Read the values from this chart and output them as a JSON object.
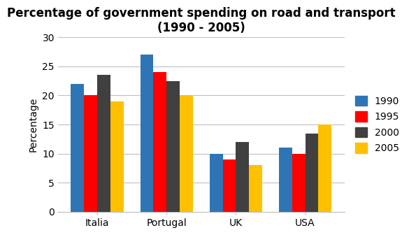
{
  "title": "Percentage of government spending on road and transport\n(1990 - 2005)",
  "categories": [
    "Italia",
    "Portugal",
    "UK",
    "USA"
  ],
  "years": [
    "1990",
    "1995",
    "2000",
    "2005"
  ],
  "values": {
    "Italia": [
      22,
      20,
      23.5,
      19
    ],
    "Portugal": [
      27,
      24,
      22.5,
      20
    ],
    "UK": [
      10,
      9,
      12,
      8
    ],
    "USA": [
      11,
      10,
      13.5,
      15
    ]
  },
  "colors": {
    "1990": "#2E75B6",
    "1995": "#FF0000",
    "2000": "#404040",
    "2005": "#FFC000"
  },
  "ylabel": "Percentage",
  "ylim": [
    0,
    30
  ],
  "yticks": [
    0,
    5,
    10,
    15,
    20,
    25,
    30
  ],
  "bar_width": 0.19,
  "title_fontsize": 12,
  "axis_fontsize": 10,
  "tick_fontsize": 10,
  "legend_fontsize": 10,
  "bg_color": "#FFFFFF",
  "grid_color": "#BFBFBF"
}
